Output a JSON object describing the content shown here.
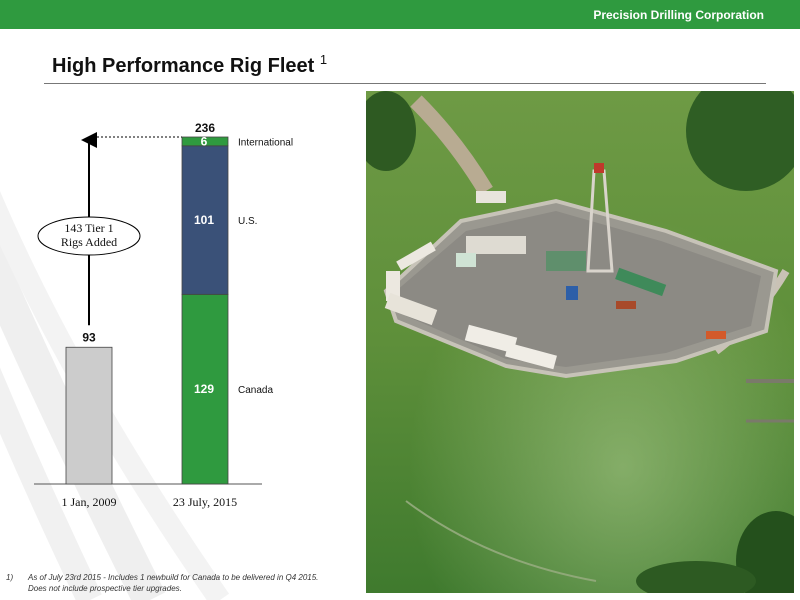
{
  "header": {
    "brand": "Precision Drilling Corporation",
    "bar_color": "#2f9a3f"
  },
  "slide": {
    "title": "High Performance Rig Fleet",
    "title_sup": "1"
  },
  "chart_data": {
    "type": "bar",
    "stacked": true,
    "categories": [
      "1 Jan, 2009",
      "23 July, 2015"
    ],
    "series": [
      {
        "name": "Canada",
        "values": [
          93,
          129
        ],
        "color": "#2f9a3f"
      },
      {
        "name": "U.S.",
        "values": [
          0,
          101
        ],
        "color": "#3a5178"
      },
      {
        "name": "International",
        "values": [
          0,
          6
        ],
        "color": "#2f9a3f"
      }
    ],
    "first_bar_color": "#cccccc",
    "totals": [
      93,
      236
    ],
    "annotation": {
      "lines": [
        "143 Tier 1",
        "Rigs Added"
      ],
      "value": 143
    },
    "ylim": [
      0,
      240
    ],
    "grid": false
  },
  "footnote": {
    "number": "1)",
    "text": "As of July 23rd 2015 - Includes 1 newbuild for Canada to be delivered in Q4 2015. Does not include prospective tier upgrades."
  },
  "photo": {
    "description_icon": "drilling-rig-aerial-photo"
  }
}
